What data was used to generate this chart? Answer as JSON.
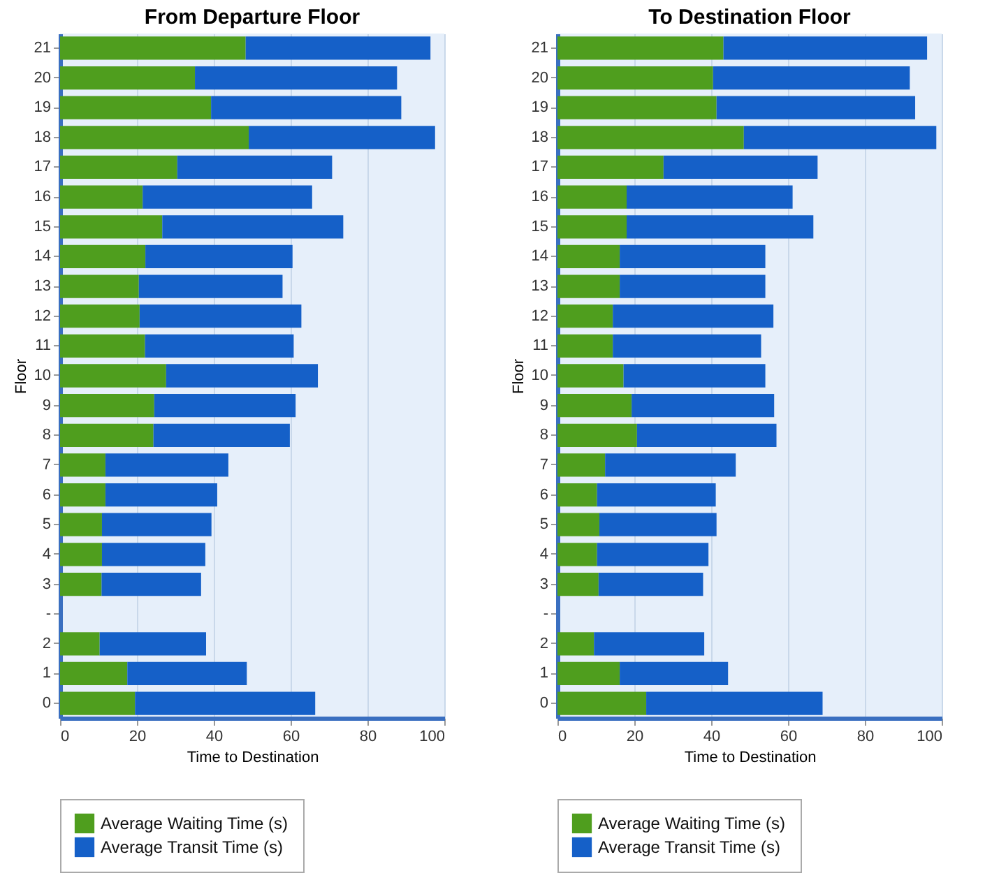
{
  "chart_data": [
    {
      "type": "bar",
      "orientation": "horizontal",
      "stacked": true,
      "title": "From Departure Floor",
      "xlabel": "Time to Destination",
      "ylabel": "Floor",
      "categories": [
        "21",
        "20",
        "19",
        "18",
        "17",
        "16",
        "15",
        "14",
        "13",
        "12",
        "11",
        "10",
        "9",
        "8",
        "7",
        "6",
        "5",
        "4",
        "3",
        "-",
        "2",
        "1",
        "0"
      ],
      "series": [
        {
          "name": "Average Waiting Time (s)",
          "color": "#4f9e1e",
          "values": [
            48.3,
            35.1,
            39.3,
            49.1,
            30.5,
            21.5,
            26.6,
            22.2,
            20.5,
            20.7,
            22.1,
            27.6,
            24.5,
            24.3,
            11.8,
            11.8,
            10.9,
            10.9,
            10.8,
            null,
            10.3,
            17.5,
            19.5
          ]
        },
        {
          "name": "Average Transit Time (s)",
          "color": "#1560c8",
          "values": [
            48.1,
            52.6,
            49.5,
            48.5,
            40.3,
            44.1,
            47.1,
            38.3,
            37.4,
            42.1,
            38.7,
            39.5,
            36.8,
            35.5,
            32,
            29.1,
            28.5,
            26.9,
            25.9,
            null,
            27.7,
            31.1,
            46.9
          ]
        }
      ],
      "xlim": [
        0,
        100
      ],
      "xticks": [
        0,
        20,
        40,
        60,
        80,
        100
      ],
      "grid": "x",
      "legend": "bottom"
    },
    {
      "type": "bar",
      "orientation": "horizontal",
      "stacked": true,
      "title": "To Destination Floor",
      "xlabel": "Time to Destination",
      "ylabel": "Floor",
      "categories": [
        "21",
        "20",
        "19",
        "18",
        "17",
        "16",
        "15",
        "14",
        "13",
        "12",
        "11",
        "10",
        "9",
        "8",
        "7",
        "6",
        "5",
        "4",
        "3",
        "-",
        "2",
        "1",
        "0"
      ],
      "series": [
        {
          "name": "Average Waiting Time (s)",
          "color": "#4f9e1e",
          "values": [
            43.2,
            40.5,
            41.4,
            48.5,
            27.6,
            18.0,
            18.0,
            16.2,
            16.2,
            14.4,
            14.4,
            17.2,
            19.3,
            20.7,
            12.4,
            10.3,
            10.9,
            10.3,
            10.7,
            null,
            9.5,
            16.2,
            23.1
          ]
        },
        {
          "name": "Average Transit Time (s)",
          "color": "#1560c8",
          "values": [
            53,
            51.2,
            51.7,
            50.1,
            40.1,
            43.2,
            48.6,
            37.9,
            37.9,
            41.8,
            38.6,
            36.9,
            37.1,
            36.3,
            34,
            30.9,
            30.5,
            29,
            27.2,
            null,
            28.7,
            28.2,
            45.9
          ]
        }
      ],
      "xlim": [
        0,
        100
      ],
      "xticks": [
        0,
        20,
        40,
        60,
        80,
        100
      ],
      "grid": "x",
      "legend": "bottom"
    }
  ]
}
